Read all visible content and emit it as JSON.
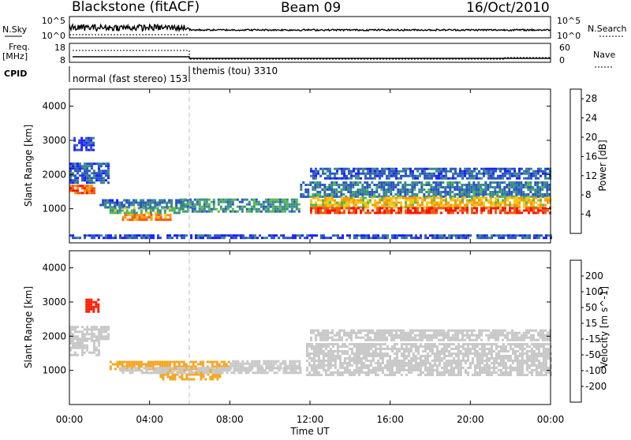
{
  "header": {
    "station": "Blackstone (fitACF)",
    "beam": "Beam 09",
    "date": "16/Oct/2010"
  },
  "top_panel": {
    "left_label": "N.Sky",
    "right_label": "N.Search",
    "left_ticks": [
      "10^5",
      "10^0"
    ],
    "right_ticks": [
      "10^5",
      "10^0"
    ]
  },
  "freq_panel": {
    "left_label_1": "Freq.",
    "left_label_2": "[MHz]",
    "right_label": "Nave",
    "left_ticks": [
      "18",
      "8"
    ],
    "right_ticks": [
      "60",
      "0"
    ]
  },
  "cpid": {
    "label": "CPID",
    "segments": [
      {
        "text": "normal (fast stereo) 153",
        "start_hour": 0
      },
      {
        "text": "themis (tou) 3310",
        "start_hour": 6
      }
    ]
  },
  "x_axis": {
    "label": "Time UT",
    "ticks": [
      "00:00",
      "04:00",
      "08:00",
      "12:00",
      "16:00",
      "20:00",
      "00:00"
    ],
    "range_hours": [
      0,
      24
    ]
  },
  "chart_data": [
    {
      "type": "heatmap",
      "title": "",
      "ylabel": "Slant Range [km]",
      "ylim": [
        0,
        4500
      ],
      "yticks": [
        "1000",
        "2000",
        "3000",
        "4000"
      ],
      "xlim_hours": [
        0,
        24
      ],
      "colorbar": {
        "label": "Power [dB]",
        "ticks": [
          "4",
          "8",
          "12",
          "16",
          "20",
          "24",
          "28"
        ],
        "range": [
          0,
          30
        ],
        "colors": [
          "#1c1cff",
          "#2b55c8",
          "#3a8a8a",
          "#53b84d",
          "#f2c81a",
          "#f49a12",
          "#f25a10",
          "#ff1400"
        ]
      },
      "regions": [
        {
          "t0": 0.0,
          "t1": 1.2,
          "r0": 1450,
          "r1": 1700,
          "value": 24
        },
        {
          "t0": 0.0,
          "t1": 2.0,
          "r0": 1750,
          "r1": 2350,
          "value": 6
        },
        {
          "t0": 0.2,
          "t1": 1.2,
          "r0": 2700,
          "r1": 3100,
          "value": 4
        },
        {
          "t0": 1.5,
          "t1": 6.0,
          "r0": 1050,
          "r1": 1280,
          "value": 7
        },
        {
          "t0": 2.0,
          "t1": 5.5,
          "r0": 850,
          "r1": 1050,
          "value": 12
        },
        {
          "t0": 2.5,
          "t1": 5.0,
          "r0": 700,
          "r1": 850,
          "value": 22
        },
        {
          "t0": 5.5,
          "t1": 11.5,
          "r0": 950,
          "r1": 1300,
          "value": 10
        },
        {
          "t0": 11.5,
          "t1": 24.0,
          "r0": 1350,
          "r1": 1800,
          "value": 8
        },
        {
          "t0": 12.0,
          "t1": 24.0,
          "r0": 1050,
          "r1": 1350,
          "value": 18
        },
        {
          "t0": 12.0,
          "t1": 24.0,
          "r0": 850,
          "r1": 1050,
          "value": 27
        },
        {
          "t0": 12.0,
          "t1": 24.0,
          "r0": 1900,
          "r1": 2200,
          "value": 6
        },
        {
          "t0": 0.0,
          "t1": 24.0,
          "r0": 120,
          "r1": 250,
          "value": 5
        }
      ]
    },
    {
      "type": "heatmap",
      "title": "",
      "ylabel": "Slant Range [km]",
      "ylim": [
        0,
        4500
      ],
      "yticks": [
        "1000",
        "2000",
        "3000",
        "4000"
      ],
      "xlim_hours": [
        0,
        24
      ],
      "colorbar": {
        "label": "Velocity [m s^-1]",
        "ticks": [
          "200",
          "100",
          "50",
          "15",
          "-15",
          "-50",
          "-100",
          "-200"
        ],
        "range": [
          -250,
          250
        ],
        "colors": [
          "#2b3cc7",
          "#2f6fba",
          "#3aa14c",
          "#7fd84a",
          "#c8c8c8",
          "#f5a623",
          "#f58a1a",
          "#f25410",
          "#ff1a00"
        ]
      },
      "regions": [
        {
          "t0": 0.0,
          "t1": 1.5,
          "r0": 1450,
          "r1": 1900,
          "value": 0
        },
        {
          "t0": 0.0,
          "t1": 2.0,
          "r0": 1900,
          "r1": 2300,
          "value": 0
        },
        {
          "t0": 0.8,
          "t1": 1.4,
          "r0": 2750,
          "r1": 3100,
          "value": -220
        },
        {
          "t0": 2.0,
          "t1": 8.0,
          "r0": 1050,
          "r1": 1280,
          "value": -60
        },
        {
          "t0": 4.5,
          "t1": 7.5,
          "r0": 750,
          "r1": 1050,
          "value": -70
        },
        {
          "t0": 2.5,
          "t1": 11.5,
          "r0": 900,
          "r1": 1100,
          "value": 0
        },
        {
          "t0": 8.0,
          "t1": 11.5,
          "r0": 1050,
          "r1": 1300,
          "value": 0
        },
        {
          "t0": 11.8,
          "t1": 24.0,
          "r0": 850,
          "r1": 1800,
          "value": 0
        },
        {
          "t0": 12.0,
          "t1": 24.0,
          "r0": 1900,
          "r1": 2200,
          "value": 0
        }
      ]
    }
  ]
}
